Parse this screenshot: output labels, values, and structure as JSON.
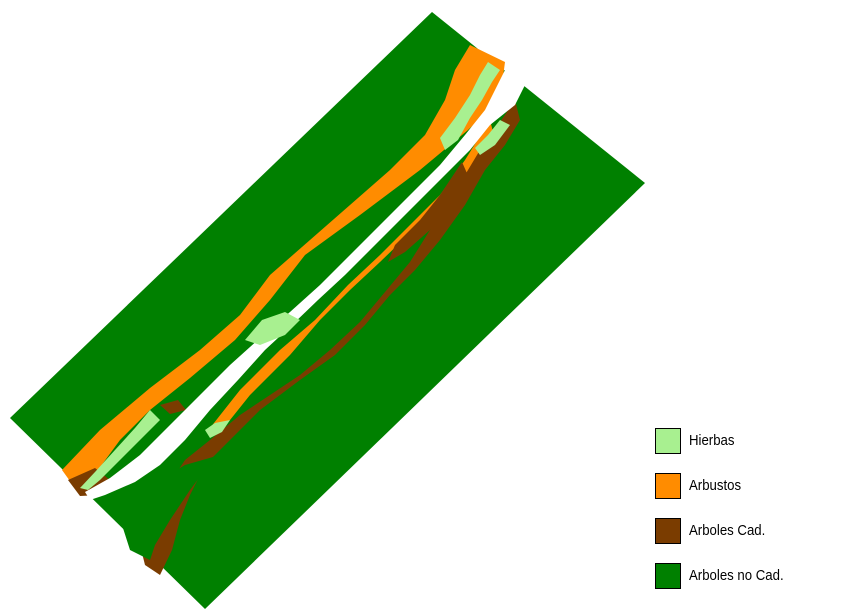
{
  "map": {
    "colors": {
      "background": "#ffffff",
      "river": "#ffffff",
      "hierbas": "#a8f090",
      "arbustos": "#ff8c00",
      "arboles_cad": "#7a3c00",
      "arboles_no_cad": "#008000"
    }
  },
  "legend": {
    "items": [
      {
        "label": "Hierbas",
        "color": "#a8f090"
      },
      {
        "label": "Arbustos",
        "color": "#ff8c00"
      },
      {
        "label": "Arboles Cad.",
        "color": "#7a3c00"
      },
      {
        "label": "Arboles no Cad.",
        "color": "#008000"
      }
    ]
  }
}
